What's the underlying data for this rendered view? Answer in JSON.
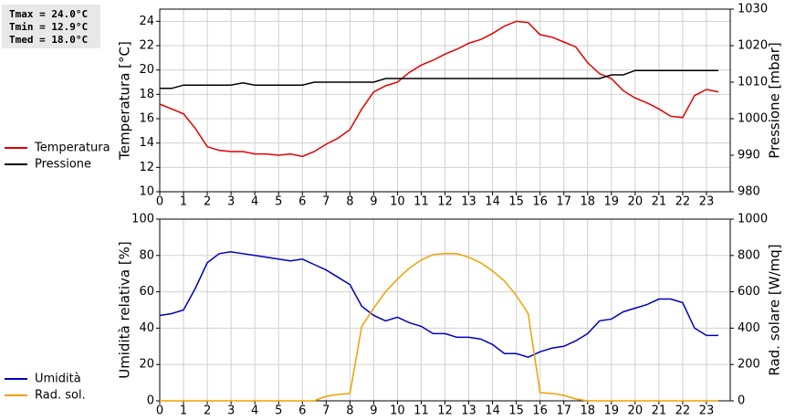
{
  "chart_data": [
    {
      "type": "line",
      "annotations": [
        "Tmax = 24.0°C",
        "Tmin = 12.9°C",
        "Tmed = 18.0°C"
      ],
      "ylabel": "Temperatura [°C]",
      "y2label": "Pressione [mbar]",
      "x": [
        0,
        0.5,
        1,
        1.5,
        2,
        2.5,
        3,
        3.5,
        4,
        4.5,
        5,
        5.5,
        6,
        6.5,
        7,
        7.5,
        8,
        8.5,
        9,
        9.5,
        10,
        10.5,
        11,
        11.5,
        12,
        12.5,
        13,
        13.5,
        14,
        14.5,
        15,
        15.5,
        16,
        16.5,
        17,
        17.5,
        18,
        18.5,
        19,
        19.5,
        20,
        20.5,
        21,
        21.5,
        22,
        22.5,
        23,
        23.5
      ],
      "xlim": [
        0,
        24
      ],
      "xticks": [
        0,
        1,
        2,
        3,
        4,
        5,
        6,
        7,
        8,
        9,
        10,
        11,
        12,
        13,
        14,
        15,
        16,
        17,
        18,
        19,
        20,
        21,
        22,
        23
      ],
      "ylim": [
        10,
        25
      ],
      "yticks": [
        10,
        12,
        14,
        16,
        18,
        20,
        22,
        24
      ],
      "y2lim": [
        980,
        1030
      ],
      "y2ticks": [
        980,
        990,
        1000,
        1010,
        1020,
        1030
      ],
      "grid": true,
      "series": [
        {
          "name": "Temperatura",
          "color": "#e00000",
          "values": [
            17.2,
            16.8,
            16.4,
            15.2,
            13.7,
            13.4,
            13.3,
            13.3,
            13.1,
            13.1,
            13.0,
            13.1,
            12.9,
            13.3,
            13.9,
            14.4,
            15.1,
            16.8,
            18.2,
            18.7,
            19.0,
            19.8,
            20.4,
            20.8,
            21.3,
            21.7,
            22.2,
            22.5,
            23.0,
            23.6,
            24.0,
            23.9,
            22.9,
            22.7,
            22.3,
            21.9,
            20.6,
            19.7,
            19.3,
            18.3,
            17.7,
            17.3,
            16.8,
            16.2,
            16.1,
            17.9,
            18.4,
            18.2
          ]
        },
        {
          "name": "Pressione",
          "color": "#000000",
          "axis": "y2",
          "values": [
            1008.3,
            1008.3,
            1009.2,
            1009.2,
            1009.2,
            1009.2,
            1009.2,
            1009.8,
            1009.2,
            1009.2,
            1009.2,
            1009.2,
            1009.2,
            1010,
            1010,
            1010,
            1010,
            1010,
            1010,
            1011,
            1011,
            1011,
            1011,
            1011,
            1011,
            1011,
            1011,
            1011,
            1011,
            1011,
            1011,
            1011,
            1011,
            1011,
            1011,
            1011,
            1011,
            1011,
            1012,
            1012,
            1013.2,
            1013.2,
            1013.2,
            1013.2,
            1013.2,
            1013.2,
            1013.2,
            1013.2
          ]
        }
      ]
    },
    {
      "type": "line",
      "ylabel": "Umidità relativa [%]",
      "y2label": "Rad. solare [W/mq]",
      "x": [
        0,
        0.5,
        1,
        1.5,
        2,
        2.5,
        3,
        3.5,
        4,
        4.5,
        5,
        5.5,
        6,
        6.5,
        7,
        7.5,
        8,
        8.5,
        9,
        9.5,
        10,
        10.5,
        11,
        11.5,
        12,
        12.5,
        13,
        13.5,
        14,
        14.5,
        15,
        15.5,
        16,
        16.5,
        17,
        17.5,
        18,
        18.5,
        19,
        19.5,
        20,
        20.5,
        21,
        21.5,
        22,
        22.5,
        23,
        23.5
      ],
      "xlim": [
        0,
        24
      ],
      "xticks": [
        0,
        1,
        2,
        3,
        4,
        5,
        6,
        7,
        8,
        9,
        10,
        11,
        12,
        13,
        14,
        15,
        16,
        17,
        18,
        19,
        20,
        21,
        22,
        23
      ],
      "ylim": [
        0,
        100
      ],
      "yticks": [
        0,
        20,
        40,
        60,
        80,
        100
      ],
      "y2lim": [
        0,
        1000
      ],
      "y2ticks": [
        0,
        200,
        400,
        600,
        800,
        1000
      ],
      "grid": true,
      "series": [
        {
          "name": "Umidità",
          "color": "#0000c0",
          "values": [
            47,
            48,
            50,
            62,
            76,
            81,
            82,
            81,
            80,
            79,
            78,
            77,
            78,
            75,
            72,
            68,
            64,
            52,
            47,
            44,
            46,
            43,
            41,
            37,
            37,
            35,
            35,
            34,
            31,
            26,
            26,
            24,
            27,
            29,
            30,
            33,
            37,
            44,
            45,
            49,
            51,
            53,
            56,
            56,
            54,
            40,
            36,
            36
          ]
        },
        {
          "name": "Rad. sol.",
          "color": "#f0a000",
          "axis": "y2",
          "values": [
            0,
            0,
            0,
            0,
            0,
            0,
            0,
            0,
            0,
            0,
            0,
            0,
            0,
            0,
            25,
            35,
            40,
            410,
            510,
            600,
            670,
            730,
            775,
            805,
            810,
            810,
            790,
            760,
            715,
            660,
            580,
            480,
            45,
            40,
            30,
            10,
            0,
            0,
            0,
            0,
            0,
            0,
            0,
            0,
            0,
            0,
            0,
            0
          ]
        }
      ]
    }
  ]
}
